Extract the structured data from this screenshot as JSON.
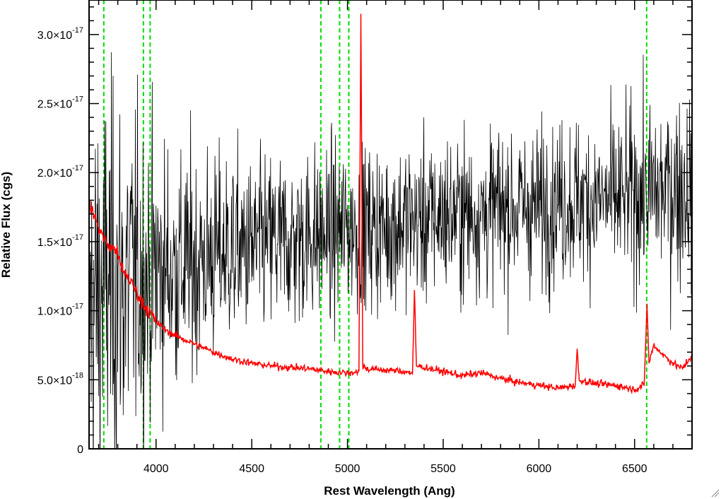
{
  "chart_data": {
    "type": "line",
    "xlabel": "Rest Wavelength (Ang)",
    "ylabel": "Relative Flux (cgs)",
    "xlim": [
      3650,
      6800
    ],
    "ylim": [
      0,
      3.25e-17
    ],
    "x_ticks": [
      {
        "value": 4000,
        "label": "4000"
      },
      {
        "value": 4500,
        "label": "4500"
      },
      {
        "value": 5000,
        "label": "5000"
      },
      {
        "value": 5500,
        "label": "5500"
      },
      {
        "value": 6000,
        "label": "6000"
      },
      {
        "value": 6500,
        "label": "6500"
      }
    ],
    "y_ticks": [
      {
        "value": 0,
        "mantissa": "0",
        "exponent": ""
      },
      {
        "value": 5e-18,
        "mantissa": "5.0×10",
        "exponent": "-18"
      },
      {
        "value": 1e-17,
        "mantissa": "1.0×10",
        "exponent": "-17"
      },
      {
        "value": 1.5e-17,
        "mantissa": "1.5×10",
        "exponent": "-17"
      },
      {
        "value": 2e-17,
        "mantissa": "2.0×10",
        "exponent": "-17"
      },
      {
        "value": 2.5e-17,
        "mantissa": "2.5×10",
        "exponent": "-17"
      },
      {
        "value": 3e-17,
        "mantissa": "3.0×10",
        "exponent": "-17"
      }
    ],
    "vertical_lines": [
      3727,
      3934,
      3969,
      4861,
      4959,
      5007,
      6563
    ],
    "vertical_line_style": {
      "color": "#00dd00",
      "dash": "dashed"
    },
    "series": [
      {
        "color": "#000000",
        "style": "noisy spectrum",
        "x": [
          3650,
          3700,
          3750,
          3800,
          3850,
          3900,
          3950,
          4000,
          4100,
          4200,
          4300,
          4400,
          4500,
          4600,
          4700,
          4800,
          4900,
          5000,
          5100,
          5200,
          5300,
          5400,
          5500,
          5600,
          5700,
          5800,
          5900,
          6000,
          6100,
          6200,
          6300,
          6400,
          6500,
          6600,
          6700,
          6800
        ],
        "y": [
          1e-17,
          1.1e-17,
          1.2e-17,
          1.2e-17,
          1.2e-17,
          1.25e-17,
          1.25e-17,
          1.3e-17,
          1.3e-17,
          1.35e-17,
          1.4e-17,
          1.45e-17,
          1.45e-17,
          1.5e-17,
          1.5e-17,
          1.55e-17,
          1.55e-17,
          1.6e-17,
          1.6e-17,
          1.6e-17,
          1.65e-17,
          1.65e-17,
          1.7e-17,
          1.7e-17,
          1.7e-17,
          1.75e-17,
          1.75e-17,
          1.75e-17,
          1.8e-17,
          1.8e-17,
          1.8e-17,
          1.8e-17,
          1.85e-17,
          1.85e-17,
          1.9e-17,
          1.9e-17
        ],
        "noise_sigma": [
          1.4e-17,
          1.4e-17,
          1.3e-17,
          1.3e-17,
          1.2e-17,
          1.1e-17,
          1e-17,
          9e-18,
          8e-18,
          7.5e-18,
          7e-18,
          6.5e-18,
          6e-18,
          6e-18,
          6e-18,
          6e-18,
          6e-18,
          5.5e-18,
          5.5e-18,
          5.5e-18,
          5.5e-18,
          5.5e-18,
          5.5e-18,
          5.5e-18,
          5.5e-18,
          5.5e-18,
          5.5e-18,
          5.5e-18,
          5.5e-18,
          5.5e-18,
          5.5e-18,
          5.5e-18,
          6e-18,
          6e-18,
          6.5e-18,
          6.5e-18
        ]
      },
      {
        "color": "#ff0000",
        "style": "model continuum",
        "x": [
          3650,
          3670,
          3700,
          3730,
          3760,
          3790,
          3820,
          3850,
          3880,
          3910,
          3950,
          4000,
          4050,
          4100,
          4200,
          4300,
          4400,
          4500,
          4600,
          4700,
          4800,
          4900,
          5000,
          5060,
          5070,
          5080,
          5100,
          5200,
          5300,
          5340,
          5350,
          5360,
          5400,
          5500,
          5600,
          5700,
          5800,
          5900,
          6000,
          6100,
          6150,
          6190,
          6200,
          6210,
          6300,
          6400,
          6500,
          6550,
          6565,
          6575,
          6600,
          6650,
          6700,
          6750,
          6800
        ],
        "y": [
          1.75e-17,
          1.72e-17,
          1.6e-17,
          1.52e-17,
          1.45e-17,
          1.45e-17,
          1.3e-17,
          1.25e-17,
          1.18e-17,
          1.1e-17,
          1.02e-17,
          9.2e-18,
          8.6e-18,
          8.2e-18,
          7.6e-18,
          7e-18,
          6.5e-18,
          6.2e-18,
          6e-18,
          5.9e-18,
          5.8e-18,
          5.6e-18,
          5.5e-18,
          5.6e-18,
          3.15e-17,
          6e-18,
          5.8e-18,
          5.7e-18,
          5.6e-18,
          5.5e-18,
          1.15e-17,
          6e-18,
          5.9e-18,
          5.6e-18,
          5.3e-18,
          5.5e-18,
          5.1e-18,
          4.8e-18,
          4.6e-18,
          4.4e-18,
          4.5e-18,
          4.6e-18,
          7.2e-18,
          5e-18,
          4.7e-18,
          4.6e-18,
          4.3e-18,
          4.6e-18,
          1.05e-17,
          6.2e-18,
          7.5e-18,
          6.8e-18,
          6.2e-18,
          5.8e-18,
          6.8e-18
        ]
      }
    ]
  }
}
